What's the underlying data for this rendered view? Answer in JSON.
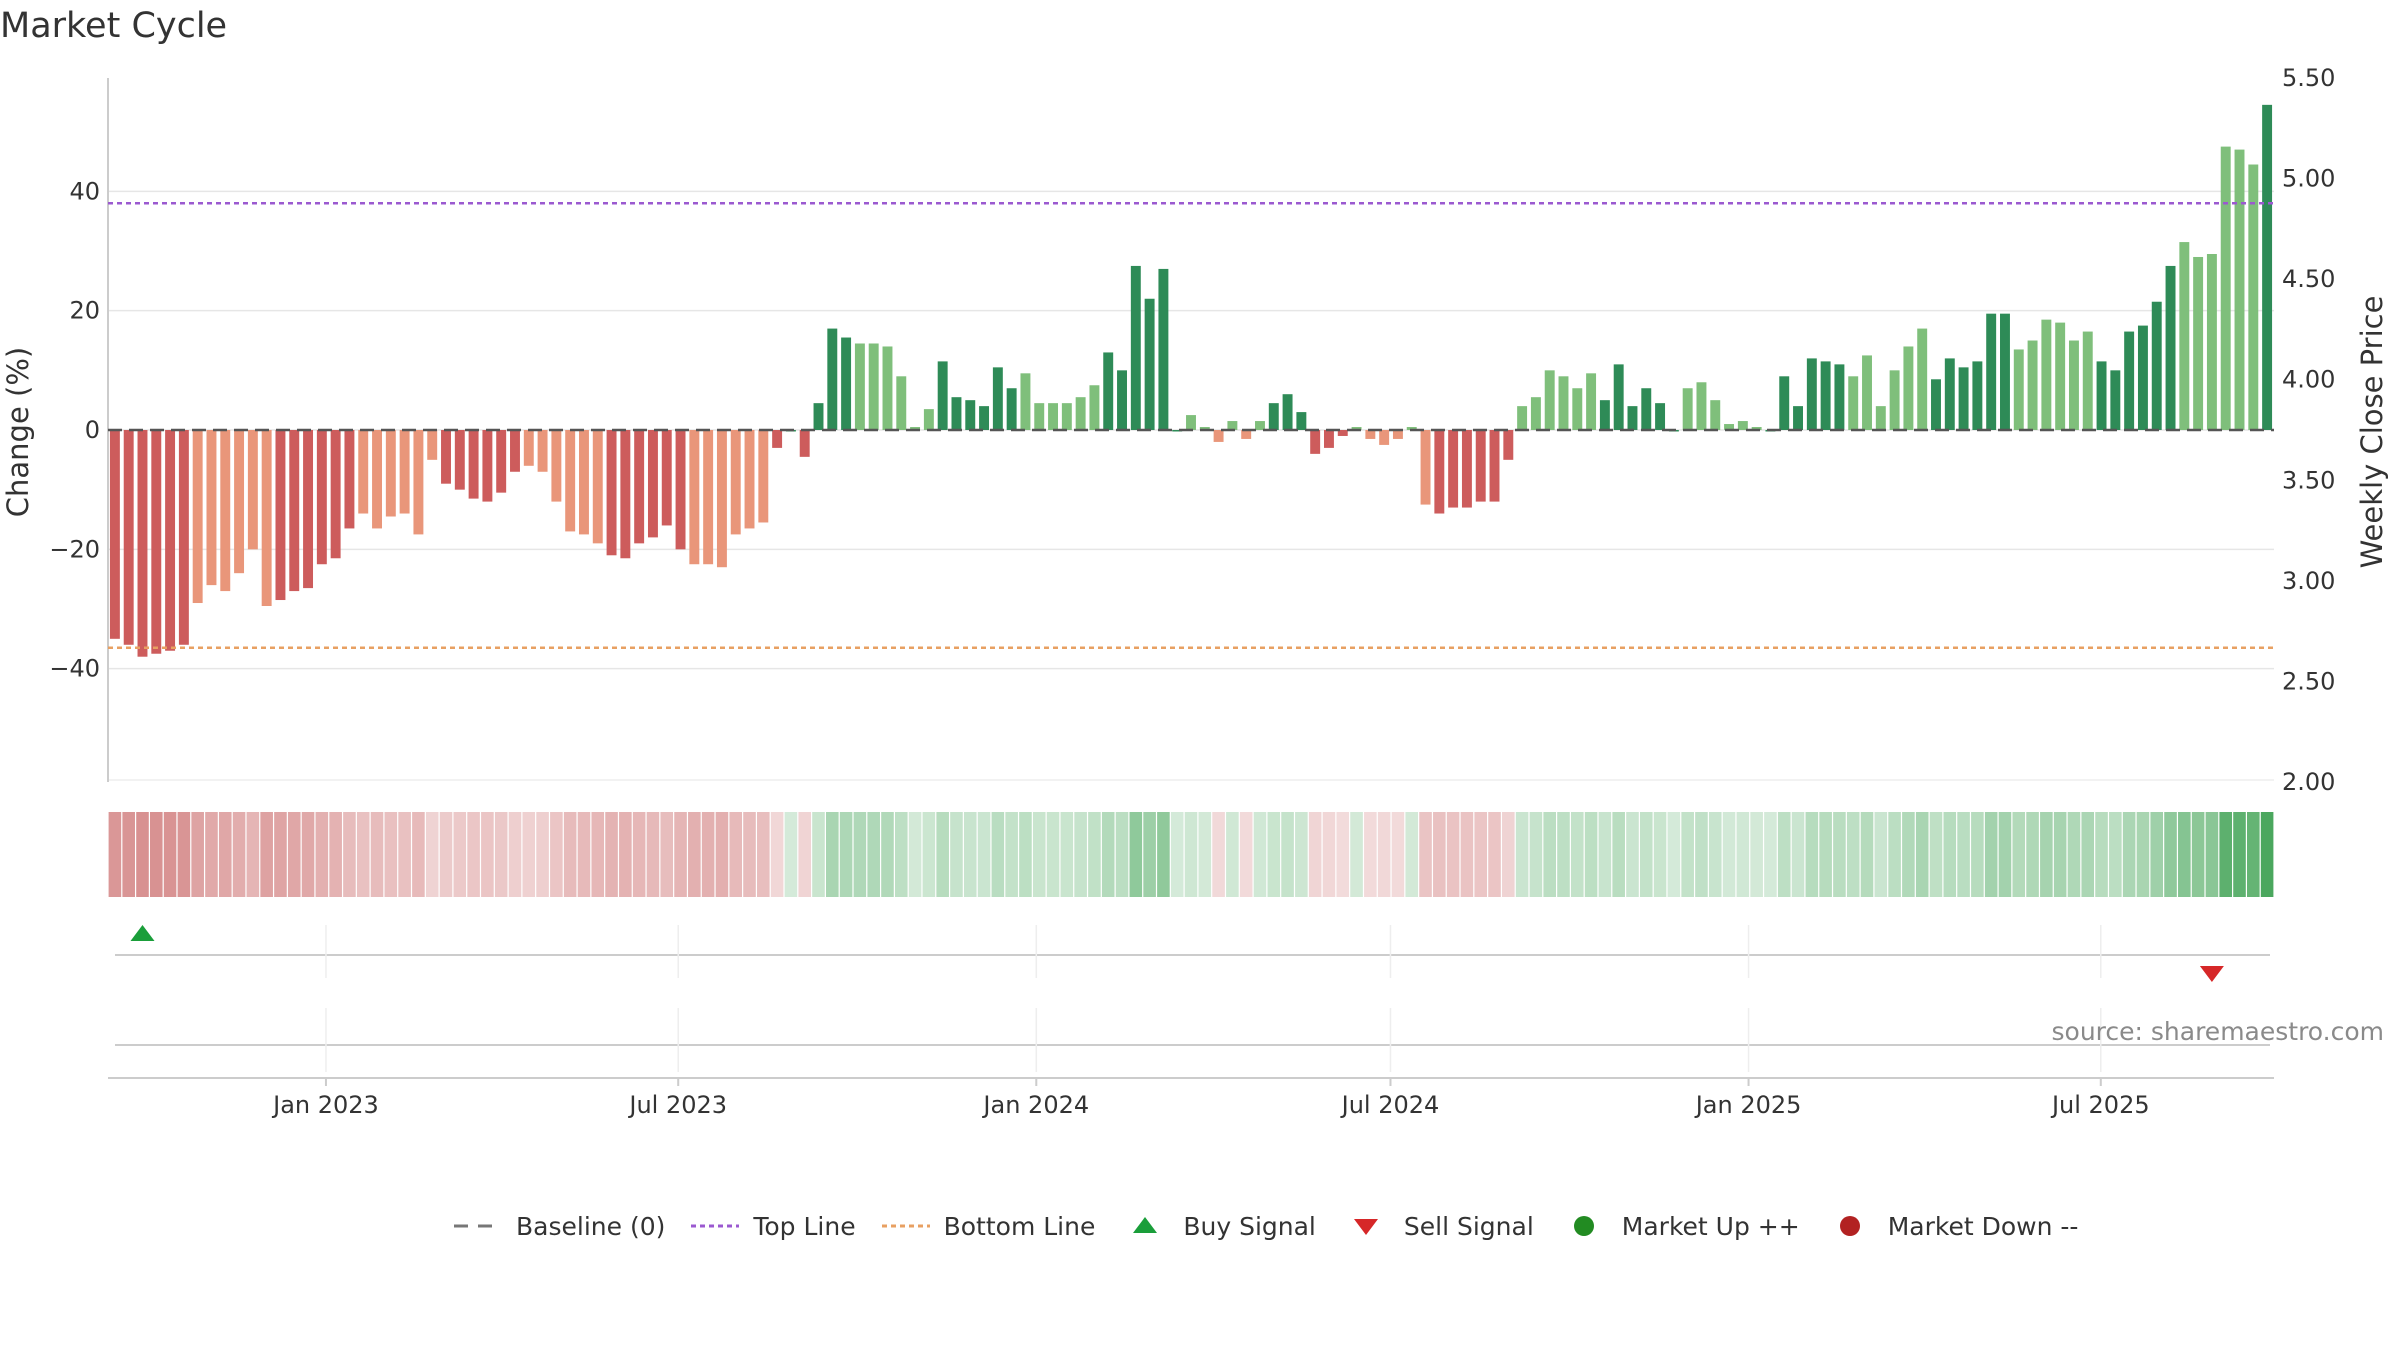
{
  "chart_data": {
    "type": "bar",
    "title": "Market Cycle",
    "ylabel_left": "Change (%)",
    "ylabel_right": "Weekly Close Price",
    "source": "source: sharemaestro.com",
    "y_left_range": [
      -59,
      59
    ],
    "y_left_ticks": [
      "40",
      "20",
      "0",
      "−20",
      "−40"
    ],
    "y_left_tick_values": [
      40,
      20,
      0,
      -20,
      -40
    ],
    "y_right_range": [
      2.0,
      5.5
    ],
    "y_right_ticks": [
      "5.50",
      "5.00",
      "4.50",
      "4.00",
      "3.50",
      "3.00",
      "2.50",
      "2.00"
    ],
    "y_right_tick_values": [
      5.5,
      5.0,
      4.5,
      4.0,
      3.5,
      3.0,
      2.5,
      2.0
    ],
    "x_range": [
      "2022-09-11",
      "2025-09-28"
    ],
    "x_ticks": [
      {
        "label": "Jan 2023",
        "date": "2023-01-01"
      },
      {
        "label": "Jul 2023",
        "date": "2023-07-01"
      },
      {
        "label": "Jan 2024",
        "date": "2024-01-01"
      },
      {
        "label": "Jul 2024",
        "date": "2024-07-01"
      },
      {
        "label": "Jan 2025",
        "date": "2025-01-01"
      },
      {
        "label": "Jul 2025",
        "date": "2025-07-01"
      }
    ],
    "first_week": "2022-09-11",
    "top_line": 38,
    "bottom_line": -36.5,
    "baseline": 0,
    "values": [
      -35,
      -36,
      -38,
      -37.5,
      -37,
      -36,
      -29,
      -26,
      -27,
      -24,
      -20,
      -29.5,
      -28.5,
      -27,
      -26.5,
      -22.5,
      -21.5,
      -16.5,
      -14,
      -16.5,
      -14.5,
      -14,
      -17.5,
      -5,
      -9,
      -10,
      -11.5,
      -12,
      -10.5,
      -7,
      -6,
      -7,
      -12,
      -17,
      -17.5,
      -19,
      -21,
      -21.5,
      -19,
      -18,
      -16,
      -20,
      -22.5,
      -22.5,
      -23,
      -17.5,
      -16.5,
      -15.5,
      -3,
      0,
      -4.5,
      4.5,
      17,
      15.5,
      14.5,
      14.5,
      14,
      9,
      0.5,
      3.5,
      11.5,
      5.5,
      5,
      4,
      10.5,
      7,
      9.5,
      4.5,
      4.5,
      4.5,
      5.5,
      7.5,
      13,
      10,
      27.5,
      22,
      27,
      0,
      2.5,
      0.5,
      -2,
      1.5,
      -1.5,
      1.5,
      4.5,
      6,
      3,
      -4,
      -3,
      -1,
      0.5,
      -1.5,
      -2.5,
      -1.5,
      0.5,
      -12.5,
      -14,
      -13,
      -13,
      -12,
      -12,
      -5,
      4,
      5.5,
      10,
      9,
      7,
      9.5,
      5,
      11,
      4,
      7,
      4.5,
      0,
      7,
      8,
      5,
      1,
      1.5,
      0.5,
      0,
      9,
      4,
      12,
      11.5,
      11,
      9,
      12.5,
      4,
      10,
      14,
      17,
      8.5,
      12,
      10.5,
      11.5,
      19.5,
      19.5,
      13.5,
      15,
      18.5,
      18,
      15,
      16.5,
      11.5,
      10,
      16.5,
      17.5,
      21.5,
      27.5,
      31.5,
      29,
      29.5,
      47.5,
      47,
      44.5,
      54.5
    ],
    "signals": [
      {
        "type": "buy",
        "week_index": 2
      },
      {
        "type": "sell",
        "week_index": 152
      }
    ],
    "legend": [
      {
        "key": "baseline",
        "label": "Baseline (0)",
        "color": "#777777"
      },
      {
        "key": "top",
        "label": "Top Line",
        "color": "#9b59d0"
      },
      {
        "key": "bottom",
        "label": "Bottom Line",
        "color": "#e8a062"
      },
      {
        "key": "buy",
        "label": "Buy Signal",
        "color": "#1a9e3a"
      },
      {
        "key": "sell",
        "label": "Sell Signal",
        "color": "#d62728"
      },
      {
        "key": "up",
        "label": "Market Up ++",
        "color": "#228b22"
      },
      {
        "key": "down",
        "label": "Market Down --",
        "color": "#b22222"
      }
    ],
    "colors": {
      "pos_dark": "#2e8b57",
      "pos_light": "#7fbf7b",
      "neg_dark": "#cd5c5c",
      "neg_light": "#e9967a",
      "heat_pos": "#3ca050",
      "heat_neg": "#c86464",
      "grid": "#e6e6e6",
      "top_line": "#9b59d0",
      "bottom_line": "#e8a062"
    }
  }
}
